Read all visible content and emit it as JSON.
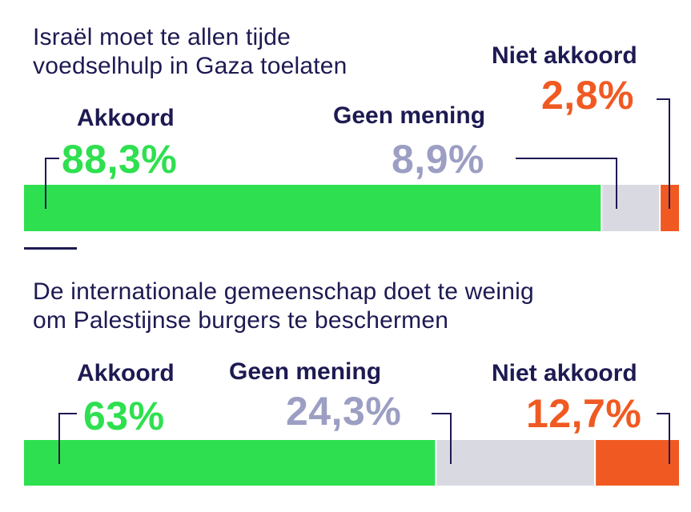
{
  "colors": {
    "title": "#1d1a52",
    "akkoord": "#2ee04f",
    "geen_mening": "#d9d9e2",
    "geen_mening_text": "#9c9fc3",
    "niet_akkoord": "#f05a22",
    "connector": "#1d1a52"
  },
  "chart_data": [
    {
      "type": "bar",
      "orientation": "horizontal-stacked",
      "title": "Israël moet te allen tijde voedselhulp in Gaza toelaten",
      "series": [
        {
          "name": "Akkoord",
          "value": 88.3,
          "label": "88,3%"
        },
        {
          "name": "Geen mening",
          "value": 8.9,
          "label": "8,9%"
        },
        {
          "name": "Niet akkoord",
          "value": 2.8,
          "label": "2,8%"
        }
      ],
      "xlim": [
        0,
        100
      ]
    },
    {
      "type": "bar",
      "orientation": "horizontal-stacked",
      "title": "De internationale gemeenschap doet te weinig om Palestijnse burgers te beschermen",
      "series": [
        {
          "name": "Akkoord",
          "value": 63,
          "label": "63%"
        },
        {
          "name": "Geen mening",
          "value": 24.3,
          "label": "24,3%"
        },
        {
          "name": "Niet akkoord",
          "value": 12.7,
          "label": "12,7%"
        }
      ],
      "xlim": [
        0,
        100
      ]
    }
  ],
  "questions": [
    {
      "title_line1": "Israël moet te allen tijde",
      "title_line2": "voedselhulp in Gaza toelaten"
    },
    {
      "title_line1": "De internationale gemeenschap doet te weinig",
      "title_line2": "om Palestijnse burgers te beschermen"
    }
  ]
}
